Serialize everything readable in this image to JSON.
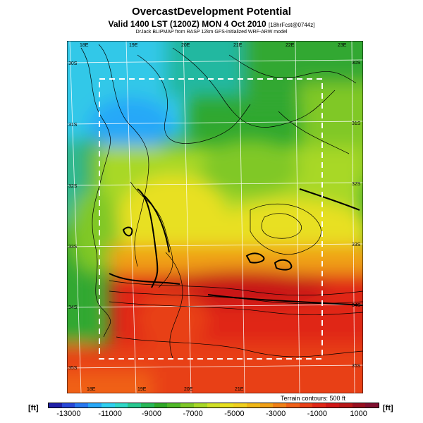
{
  "header": {
    "title": "OvercastDevelopment Potential",
    "valid_line": "Valid 1400 LST (1200Z) MON 4 Oct 2010",
    "forecast_tag": "[18hrFcst@0744z]",
    "source_line": "DrJack BLIPMAP from RASP 12km GFS-initialized WRF-ARW model"
  },
  "map": {
    "top_longitudes": [
      "18E",
      "19E",
      "20E",
      "21E",
      "22E",
      "23E"
    ],
    "bottom_longitudes": [
      "18E",
      "19E",
      "20E",
      "21E"
    ],
    "left_latitudes": [
      "30S",
      "31S",
      "32S",
      "33S",
      "34S",
      "35S"
    ],
    "right_latitudes": [
      "30S",
      "31S",
      "32S",
      "33S",
      "34S",
      "35S"
    ],
    "terrain_note": "Terrain contours: 500 ft",
    "palette": {
      "dark_blue": "#1820b8",
      "cyan": "#30c8e8",
      "teal": "#20b8a0",
      "green": "#30a830",
      "light_green": "#8cd23c",
      "yellow": "#e8e020",
      "orange": "#f0a018",
      "red": "#e81818",
      "dark_red": "#a01010",
      "subdomain_box": "#ffffff",
      "grid": "#ffffff",
      "contours": "#000000"
    }
  },
  "colorbar": {
    "unit_left": "[ft]",
    "unit_right": "[ft]",
    "min": -14000,
    "max": 2000,
    "tick_labels": [
      "-13000",
      "-11000",
      "-9000",
      "-7000",
      "-5000",
      "-3000",
      "-1000",
      "1000"
    ],
    "tick_values": [
      -13000,
      -11000,
      -9000,
      -7000,
      -5000,
      -3000,
      -1000,
      1000
    ],
    "colors": [
      "#2020a8",
      "#2848d8",
      "#2878f0",
      "#28a8f8",
      "#30d0f0",
      "#30d8c8",
      "#28c890",
      "#28b858",
      "#30a828",
      "#50b828",
      "#80c828",
      "#a8d828",
      "#d0e028",
      "#e8e020",
      "#f0d020",
      "#f0b818",
      "#f0a018",
      "#f08018",
      "#f06018",
      "#e84018",
      "#e02818",
      "#d01818",
      "#b81818",
      "#981020",
      "#801030"
    ]
  }
}
